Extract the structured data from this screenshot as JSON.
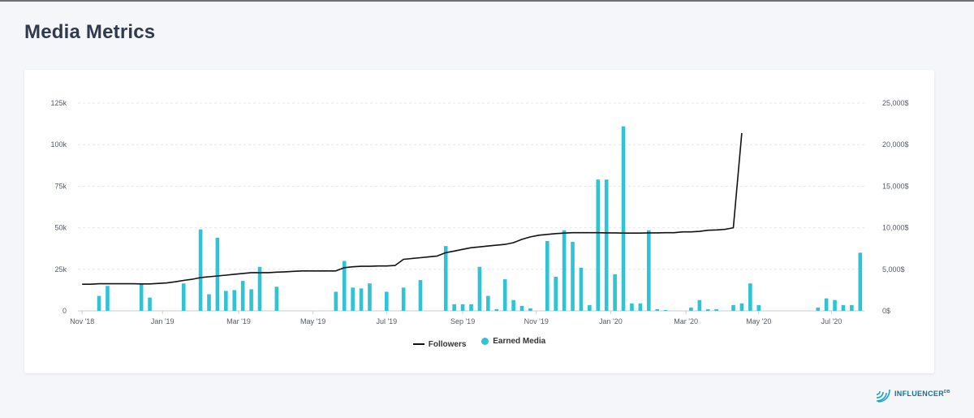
{
  "page": {
    "title": "Media Metrics"
  },
  "brand": {
    "name": "INFLUENCER",
    "sup": "DB"
  },
  "colors": {
    "bar": "#2ec4d6",
    "line": "#111111",
    "grid": "#e5e7eb"
  },
  "chart_data": {
    "type": "bar+line",
    "x_ticks": [
      "Nov '18",
      "Jan '19",
      "Mar '19",
      "May '19",
      "Jul '19",
      "Sep '19",
      "Nov '19",
      "Jan '20",
      "Mar '20",
      "May '20",
      "Jul '20"
    ],
    "y_left": {
      "ticks": [
        "0",
        "25k",
        "50k",
        "75k",
        "100k",
        "125k"
      ],
      "range": [
        0,
        125000
      ]
    },
    "y_right": {
      "ticks": [
        "0$",
        "5,000$",
        "10,000$",
        "15,000$",
        "20,000$",
        "25,000$"
      ],
      "range": [
        0,
        25000
      ]
    },
    "legend": [
      {
        "name": "Followers",
        "kind": "line"
      },
      {
        "name": "Earned Media",
        "kind": "bar"
      }
    ],
    "grid": true,
    "legend_position": "bottom",
    "series": [
      {
        "name": "Followers",
        "axis": "left",
        "type": "line",
        "points": [
          [
            0,
            16000
          ],
          [
            1,
            16000
          ],
          [
            2,
            16300
          ],
          [
            3,
            16300
          ],
          [
            4,
            16300
          ],
          [
            5,
            16300
          ],
          [
            6,
            16300
          ],
          [
            7,
            16200
          ],
          [
            8,
            16200
          ],
          [
            9,
            16500
          ],
          [
            10,
            16800
          ],
          [
            11,
            17500
          ],
          [
            12,
            18300
          ],
          [
            13,
            19000
          ],
          [
            14,
            20000
          ],
          [
            15,
            20500
          ],
          [
            16,
            21000
          ],
          [
            17,
            21500
          ],
          [
            18,
            22000
          ],
          [
            19,
            22500
          ],
          [
            20,
            23000
          ],
          [
            21,
            23000
          ],
          [
            22,
            23000
          ],
          [
            23,
            23300
          ],
          [
            24,
            23500
          ],
          [
            25,
            23800
          ],
          [
            26,
            24000
          ],
          [
            27,
            24000
          ],
          [
            28,
            24000
          ],
          [
            29,
            24000
          ],
          [
            30,
            24000
          ],
          [
            31,
            26000
          ],
          [
            32,
            26500
          ],
          [
            33,
            26800
          ],
          [
            34,
            26800
          ],
          [
            35,
            27000
          ],
          [
            36,
            27000
          ],
          [
            37,
            27300
          ],
          [
            38,
            31000
          ],
          [
            39,
            31500
          ],
          [
            40,
            32000
          ],
          [
            41,
            32500
          ],
          [
            42,
            33000
          ],
          [
            43,
            35000
          ],
          [
            44,
            36000
          ],
          [
            45,
            37000
          ],
          [
            46,
            38000
          ],
          [
            47,
            38500
          ],
          [
            48,
            39000
          ],
          [
            49,
            39500
          ],
          [
            50,
            40000
          ],
          [
            51,
            41000
          ],
          [
            52,
            43000
          ],
          [
            53,
            44500
          ],
          [
            54,
            45500
          ],
          [
            55,
            46000
          ],
          [
            56,
            46500
          ],
          [
            57,
            46800
          ],
          [
            58,
            47000
          ],
          [
            59,
            47000
          ],
          [
            60,
            47000
          ],
          [
            61,
            47000
          ],
          [
            62,
            46900
          ],
          [
            63,
            46900
          ],
          [
            64,
            46800
          ],
          [
            65,
            46800
          ],
          [
            66,
            46800
          ],
          [
            67,
            46900
          ],
          [
            68,
            46900
          ],
          [
            69,
            47000
          ],
          [
            70,
            47000
          ],
          [
            71,
            47500
          ],
          [
            72,
            47500
          ],
          [
            73,
            47800
          ],
          [
            74,
            48500
          ],
          [
            75,
            48700
          ],
          [
            76,
            49000
          ],
          [
            77,
            50000
          ],
          [
            78,
            107000
          ]
        ]
      },
      {
        "name": "Earned Media",
        "axis": "right",
        "type": "bar",
        "points": [
          [
            2,
            1800
          ],
          [
            3,
            3000
          ],
          [
            7,
            3300
          ],
          [
            8,
            1600
          ],
          [
            12,
            3300
          ],
          [
            14,
            9800
          ],
          [
            15,
            2000
          ],
          [
            16,
            8800
          ],
          [
            17,
            2400
          ],
          [
            18,
            2500
          ],
          [
            19,
            3600
          ],
          [
            20,
            2600
          ],
          [
            21,
            5300
          ],
          [
            23,
            2900
          ],
          [
            30,
            2300
          ],
          [
            31,
            6000
          ],
          [
            32,
            2800
          ],
          [
            33,
            2700
          ],
          [
            34,
            3300
          ],
          [
            36,
            2300
          ],
          [
            38,
            2800
          ],
          [
            40,
            3700
          ],
          [
            43,
            7800
          ],
          [
            44,
            800
          ],
          [
            45,
            800
          ],
          [
            46,
            800
          ],
          [
            47,
            5300
          ],
          [
            48,
            1800
          ],
          [
            49,
            200
          ],
          [
            50,
            3800
          ],
          [
            51,
            1300
          ],
          [
            52,
            600
          ],
          [
            53,
            300
          ],
          [
            55,
            8400
          ],
          [
            56,
            4100
          ],
          [
            57,
            9700
          ],
          [
            58,
            8300
          ],
          [
            59,
            5200
          ],
          [
            60,
            700
          ],
          [
            61,
            15800
          ],
          [
            62,
            15800
          ],
          [
            63,
            4400
          ],
          [
            64,
            22200
          ],
          [
            65,
            900
          ],
          [
            66,
            900
          ],
          [
            67,
            9700
          ],
          [
            68,
            200
          ],
          [
            69,
            100
          ],
          [
            72,
            400
          ],
          [
            73,
            1300
          ],
          [
            74,
            200
          ],
          [
            75,
            200
          ],
          [
            77,
            700
          ],
          [
            78,
            900
          ],
          [
            79,
            3300
          ],
          [
            80,
            700
          ],
          [
            87,
            400
          ],
          [
            88,
            1500
          ],
          [
            89,
            1300
          ],
          [
            90,
            700
          ],
          [
            91,
            700
          ],
          [
            92,
            7000
          ]
        ]
      }
    ]
  }
}
